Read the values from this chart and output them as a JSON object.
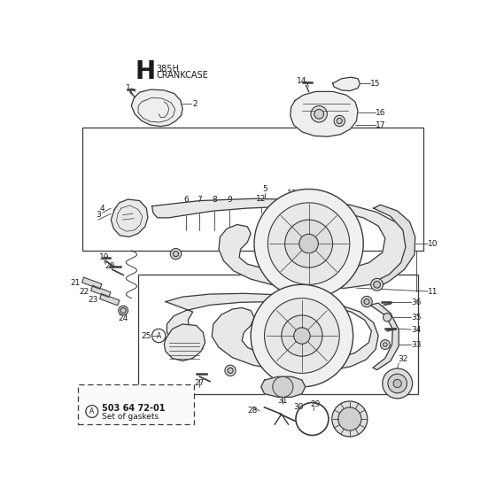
{
  "title_letter": "H",
  "title_line1": "385H",
  "title_line2": "CRANKCASE",
  "bg_color": "#ffffff",
  "line_color": "#3a3a3a",
  "text_color": "#1a1a1a",
  "figsize": [
    5.6,
    5.6
  ],
  "dpi": 100,
  "gasket_part_num": "A 503 64 72-01",
  "gasket_desc": "Set of gaskets"
}
